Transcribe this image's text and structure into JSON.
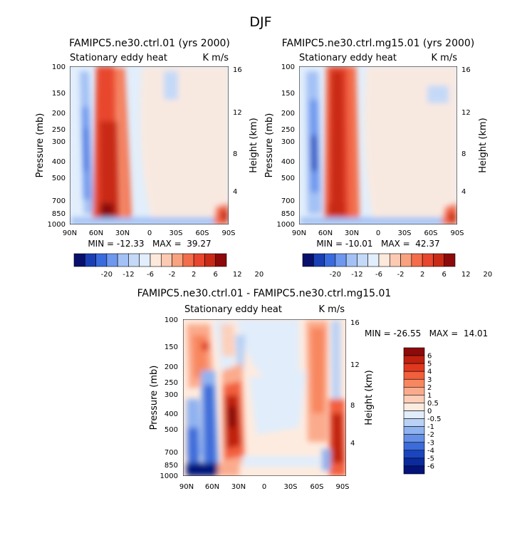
{
  "page": {
    "season": "DJF"
  },
  "tick_labels": {
    "lat": [
      "90N",
      "60N",
      "30N",
      "0",
      "30S",
      "60S",
      "90S"
    ],
    "pressure": [
      "100",
      "150",
      "200",
      "250",
      "300",
      "400",
      "500",
      "700",
      "850",
      "1000"
    ],
    "height": [
      "16",
      "12",
      "8",
      "4"
    ]
  },
  "chart_data": [
    {
      "type": "heatmap",
      "title": "FAMIPC5.ne30.ctrl.01 (yrs 2000)",
      "subtitle_left": "Stationary eddy heat",
      "subtitle_right": "K m/s",
      "xlabel": "",
      "ylabel": "Pressure (mb)",
      "ylabel_right": "Height (km)",
      "stats": "MIN = -12.33   MAX =  39.27",
      "colorbar": {
        "orientation": "horizontal",
        "levels": [
          "-20",
          "-12",
          "-6",
          "-2",
          "2",
          "6",
          "12",
          "20"
        ],
        "colors": [
          "#08106b",
          "#1a3fb5",
          "#3a6bde",
          "#6e97ee",
          "#a3c1f5",
          "#c4d9f8",
          "#e2eefb",
          "#fde9dc",
          "#fccab2",
          "#f9a27f",
          "#f36d4b",
          "#e8462e",
          "#c92a16",
          "#8c0a0a"
        ]
      }
    },
    {
      "type": "heatmap",
      "title": "FAMIPC5.ne30.ctrl.mg15.01 (yrs 2000)",
      "subtitle_left": "Stationary eddy heat",
      "subtitle_right": "K m/s",
      "xlabel": "",
      "ylabel": "Pressure (mb)",
      "ylabel_right": "Height (km)",
      "stats": "MIN = -10.01   MAX =  42.37",
      "colorbar": {
        "orientation": "horizontal",
        "levels": [
          "-20",
          "-12",
          "-6",
          "-2",
          "2",
          "6",
          "12",
          "20"
        ],
        "colors": [
          "#08106b",
          "#1a3fb5",
          "#3a6bde",
          "#6e97ee",
          "#a3c1f5",
          "#c4d9f8",
          "#e2eefb",
          "#fde9dc",
          "#fccab2",
          "#f9a27f",
          "#f36d4b",
          "#e8462e",
          "#c92a16",
          "#8c0a0a"
        ]
      }
    },
    {
      "type": "heatmap",
      "title": "FAMIPC5.ne30.ctrl.01 - FAMIPC5.ne30.ctrl.mg15.01",
      "subtitle_left": "Stationary eddy heat",
      "subtitle_right": "K m/s",
      "xlabel": "",
      "ylabel": "Pressure (mb)",
      "ylabel_right": "Height (km)",
      "stats": "MIN = -26.55   MAX =  14.01",
      "colorbar": {
        "orientation": "vertical",
        "levels": [
          "6",
          "5",
          "4",
          "3",
          "2",
          "1",
          "0.5",
          "0",
          "-0.5",
          "-1",
          "-2",
          "-3",
          "-4",
          "-5",
          "-6"
        ],
        "colors": [
          "#8c0a0a",
          "#c0200f",
          "#e0381f",
          "#f25f3c",
          "#f8875f",
          "#fbab8d",
          "#fdcdb7",
          "#feebdf",
          "#e1edfb",
          "#b9d2f6",
          "#8fb2f0",
          "#6590e6",
          "#3c6cd9",
          "#1b45bf",
          "#0b2b9c",
          "#04127a"
        ]
      }
    }
  ]
}
